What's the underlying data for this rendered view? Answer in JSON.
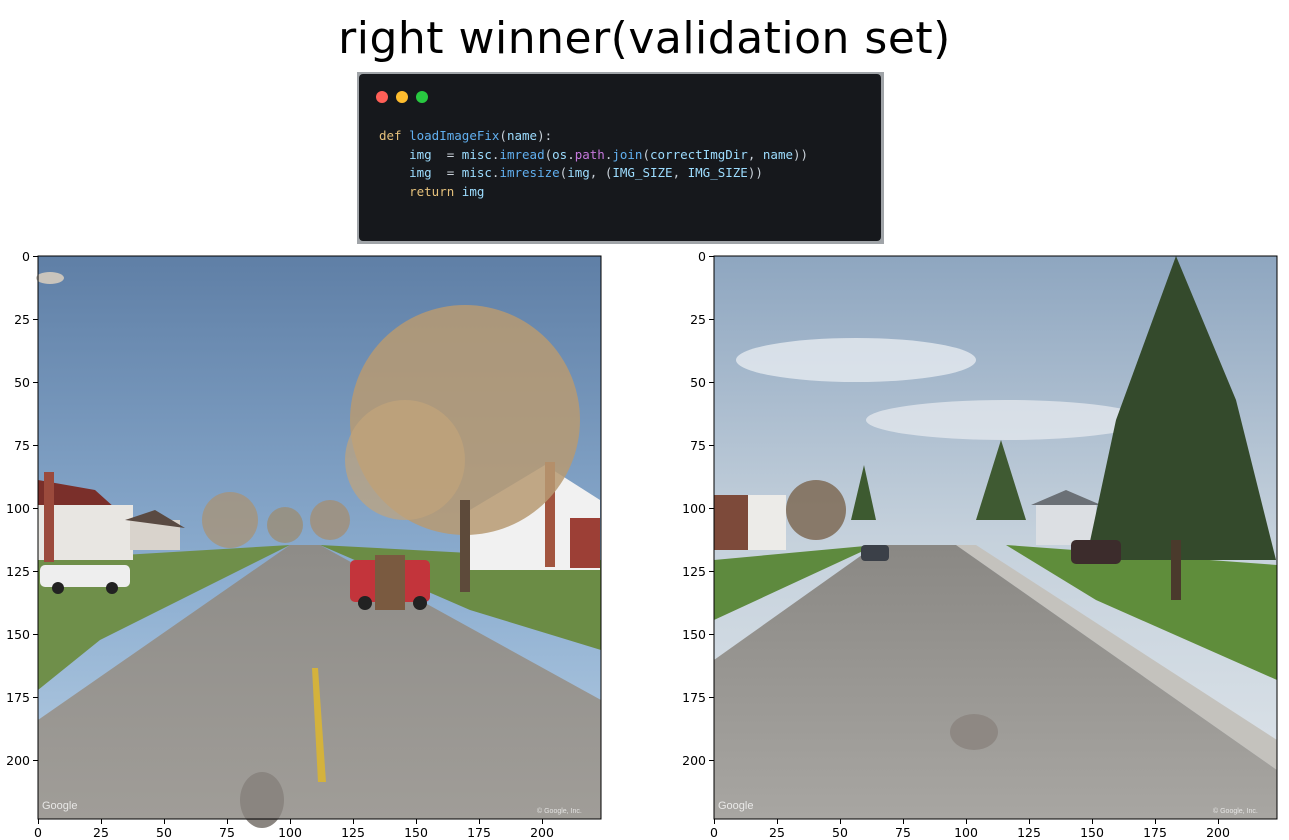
{
  "title": "right winner(validation set)",
  "code": {
    "lines": [
      "def loadImageFix(name):",
      "    img  = misc.imread(os.path.join(correctImgDir, name))",
      "    img  = misc.imresize(img, (IMG_SIZE, IMG_SIZE))",
      "    return img"
    ]
  },
  "images": [
    {
      "name": "left street view image",
      "y_ticks": [
        "0",
        "25",
        "50",
        "75",
        "100",
        "125",
        "150",
        "175",
        "200"
      ],
      "x_ticks": [
        "0",
        "25",
        "50",
        "75",
        "100",
        "125",
        "150",
        "175",
        "200"
      ],
      "watermark": "Google",
      "copyright": "© Google, Inc."
    },
    {
      "name": "right street view image",
      "y_ticks": [
        "0",
        "25",
        "50",
        "75",
        "100",
        "125",
        "150",
        "175",
        "200"
      ],
      "x_ticks": [
        "0",
        "25",
        "50",
        "75",
        "100",
        "125",
        "150",
        "175",
        "200"
      ],
      "watermark": "Google",
      "copyright": "© Google, Inc."
    }
  ]
}
